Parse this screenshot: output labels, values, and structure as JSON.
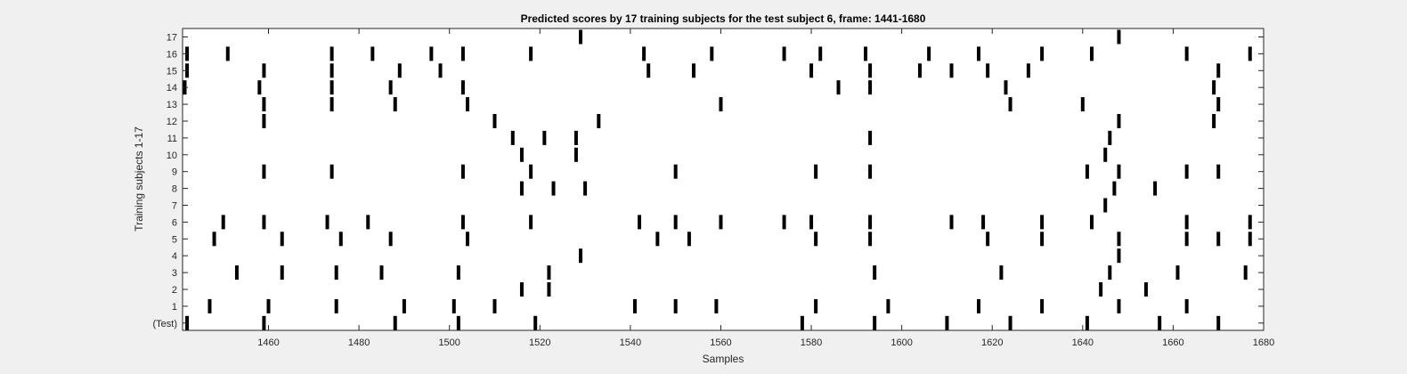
{
  "chart_data": {
    "type": "scatter",
    "title": "Predicted scores by 17 training subjects for the test subject 6, frame: 1441-1680",
    "xlabel": "Samples",
    "ylabel": "Training subjects 1-17",
    "xlim": [
      1441,
      1680
    ],
    "xticks": [
      1460,
      1480,
      1500,
      1520,
      1540,
      1560,
      1580,
      1600,
      1620,
      1640,
      1660,
      1680
    ],
    "ytick_labels": [
      "(Test)",
      "1",
      "2",
      "3",
      "4",
      "5",
      "6",
      "7",
      "8",
      "9",
      "10",
      "11",
      "12",
      "13",
      "14",
      "15",
      "16",
      "17"
    ],
    "grid": false,
    "colors": {
      "mark": "#000000",
      "background": "#f0f0f0",
      "plot": "#ffffff"
    },
    "series": [
      {
        "row": "(Test)",
        "x": [
          1442,
          1459,
          1488,
          1502,
          1519,
          1578,
          1594,
          1610,
          1624,
          1641,
          1657,
          1670
        ]
      },
      {
        "row": "1",
        "x": [
          1447,
          1460,
          1475,
          1490,
          1501,
          1510,
          1541,
          1550,
          1559,
          1581,
          1597,
          1617,
          1631,
          1648,
          1663
        ]
      },
      {
        "row": "2",
        "x": [
          1516,
          1522,
          1644,
          1654
        ]
      },
      {
        "row": "3",
        "x": [
          1453,
          1463,
          1475,
          1485,
          1502,
          1522,
          1594,
          1622,
          1646,
          1661,
          1676
        ]
      },
      {
        "row": "4",
        "x": [
          1529,
          1648
        ]
      },
      {
        "row": "5",
        "x": [
          1448,
          1463,
          1476,
          1487,
          1504,
          1546,
          1553,
          1581,
          1593,
          1619,
          1631,
          1648,
          1663,
          1670,
          1677
        ]
      },
      {
        "row": "6",
        "x": [
          1450,
          1459,
          1473,
          1482,
          1503,
          1518,
          1542,
          1550,
          1560,
          1574,
          1580,
          1593,
          1611,
          1618,
          1631,
          1642,
          1663,
          1677
        ]
      },
      {
        "row": "7",
        "x": [
          1645
        ]
      },
      {
        "row": "8",
        "x": [
          1516,
          1523,
          1530,
          1647,
          1656
        ]
      },
      {
        "row": "9",
        "x": [
          1459,
          1474,
          1503,
          1518,
          1550,
          1581,
          1593,
          1641,
          1648,
          1663,
          1670
        ]
      },
      {
        "row": "10",
        "x": [
          1516,
          1528,
          1645
        ]
      },
      {
        "row": "11",
        "x": [
          1514,
          1521,
          1528,
          1593,
          1646
        ]
      },
      {
        "row": "12",
        "x": [
          1459,
          1510,
          1533,
          1648,
          1669
        ]
      },
      {
        "row": "13",
        "x": [
          1459,
          1474,
          1488,
          1504,
          1560,
          1624,
          1640,
          1670
        ]
      },
      {
        "row": "14",
        "x": [
          1441,
          1458,
          1474,
          1487,
          1503,
          1586,
          1593,
          1623,
          1669
        ]
      },
      {
        "row": "15",
        "x": [
          1442,
          1459,
          1474,
          1489,
          1498,
          1544,
          1554,
          1580,
          1593,
          1604,
          1611,
          1619,
          1628,
          1670
        ]
      },
      {
        "row": "16",
        "x": [
          1442,
          1451,
          1474,
          1483,
          1496,
          1503,
          1518,
          1543,
          1558,
          1574,
          1582,
          1592,
          1606,
          1617,
          1631,
          1642,
          1663,
          1677
        ]
      },
      {
        "row": "17",
        "x": [
          1529,
          1648
        ]
      }
    ]
  }
}
